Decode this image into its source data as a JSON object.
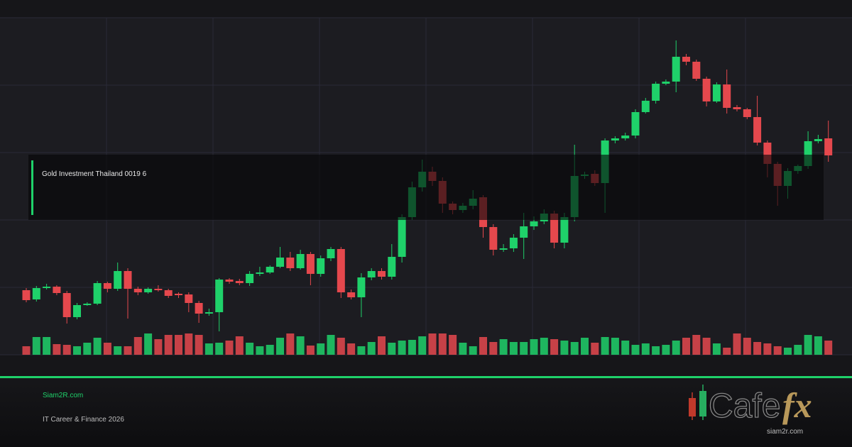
{
  "chart_data": {
    "type": "candlestick",
    "title": "Gold Investment Thailand 0019 6",
    "up_color": "#1fd16a",
    "down_color": "#e5484d",
    "ylim": [
      0,
      475
    ],
    "yticks": [
      0,
      95,
      190,
      285,
      380,
      475
    ],
    "y2lim": [
      0,
      475
    ],
    "grid": true,
    "open": [
      91,
      78,
      94,
      96,
      87,
      53,
      70,
      72,
      101,
      93,
      118,
      93,
      88,
      93,
      91,
      86,
      85,
      73,
      58,
      60,
      106,
      104,
      101,
      114,
      116,
      124,
      137,
      122,
      142,
      114,
      136,
      149,
      88,
      81,
      109,
      118,
      110,
      138,
      194,
      236,
      258,
      245,
      213,
      204,
      210,
      222,
      180,
      148,
      150,
      165,
      181,
      188,
      199,
      158,
      194,
      252,
      255,
      242,
      302,
      305,
      309,
      342,
      358,
      382,
      385,
      420,
      413,
      389,
      357,
      381,
      349,
      346,
      335,
      299,
      269,
      238,
      259,
      266,
      301,
      305
    ],
    "high": [
      94,
      97,
      100,
      98,
      90,
      73,
      74,
      104,
      103,
      130,
      122,
      96,
      95,
      98,
      93,
      88,
      88,
      76,
      65,
      108,
      108,
      107,
      118,
      124,
      126,
      152,
      145,
      148,
      145,
      140,
      152,
      152,
      92,
      115,
      122,
      122,
      156,
      198,
      244,
      275,
      265,
      250,
      216,
      214,
      232,
      225,
      184,
      156,
      170,
      200,
      195,
      205,
      203,
      200,
      296,
      258,
      260,
      305,
      308,
      313,
      346,
      362,
      385,
      388,
      443,
      424,
      416,
      392,
      384,
      402,
      352,
      348,
      365,
      302,
      272,
      263,
      268,
      315,
      310,
      330
    ],
    "low": [
      74,
      75,
      92,
      84,
      44,
      50,
      69,
      70,
      88,
      90,
      51,
      84,
      86,
      89,
      80,
      80,
      60,
      45,
      55,
      33,
      100,
      98,
      97,
      111,
      114,
      122,
      118,
      120,
      98,
      110,
      132,
      80,
      78,
      53,
      105,
      106,
      106,
      130,
      190,
      230,
      238,
      200,
      198,
      200,
      205,
      165,
      140,
      145,
      145,
      135,
      176,
      184,
      150,
      150,
      188,
      248,
      238,
      200,
      298,
      302,
      305,
      340,
      354,
      380,
      370,
      408,
      386,
      350,
      355,
      340,
      343,
      332,
      295,
      250,
      210,
      220,
      255,
      262,
      298,
      272
    ],
    "close": [
      77,
      94,
      96,
      87,
      53,
      70,
      72,
      101,
      93,
      118,
      93,
      88,
      93,
      91,
      83,
      84,
      73,
      58,
      60,
      106,
      103,
      101,
      114,
      116,
      124,
      137,
      122,
      142,
      114,
      136,
      149,
      88,
      81,
      109,
      118,
      110,
      138,
      194,
      236,
      258,
      245,
      213,
      204,
      210,
      220,
      180,
      148,
      150,
      165,
      181,
      188,
      199,
      158,
      194,
      252,
      254,
      242,
      302,
      305,
      309,
      342,
      358,
      382,
      385,
      420,
      413,
      389,
      357,
      381,
      348,
      346,
      335,
      299,
      269,
      238,
      259,
      266,
      301,
      304,
      281
    ],
    "volume": {
      "axis": "y2",
      "values": [
        12,
        25,
        25,
        15,
        14,
        12,
        17,
        24,
        17,
        12,
        12,
        25,
        30,
        22,
        28,
        28,
        30,
        28,
        16,
        17,
        20,
        26,
        17,
        12,
        14,
        24,
        30,
        26,
        13,
        16,
        28,
        24,
        16,
        12,
        18,
        26,
        17,
        20,
        21,
        26,
        30,
        30,
        28,
        17,
        12,
        25,
        18,
        22,
        18,
        18,
        22,
        24,
        22,
        20,
        18,
        24,
        17,
        25,
        24,
        20,
        14,
        16,
        12,
        14,
        20,
        24,
        28,
        24,
        16,
        10,
        30,
        24,
        18,
        16,
        12,
        10,
        14,
        28,
        26,
        20
      ]
    }
  },
  "footer": {
    "site": "Siam2R.com",
    "tagline": "IT Career & Finance 2026"
  },
  "logo": {
    "word": "Cafe",
    "accent": "fx",
    "url": "siam2r.com"
  }
}
